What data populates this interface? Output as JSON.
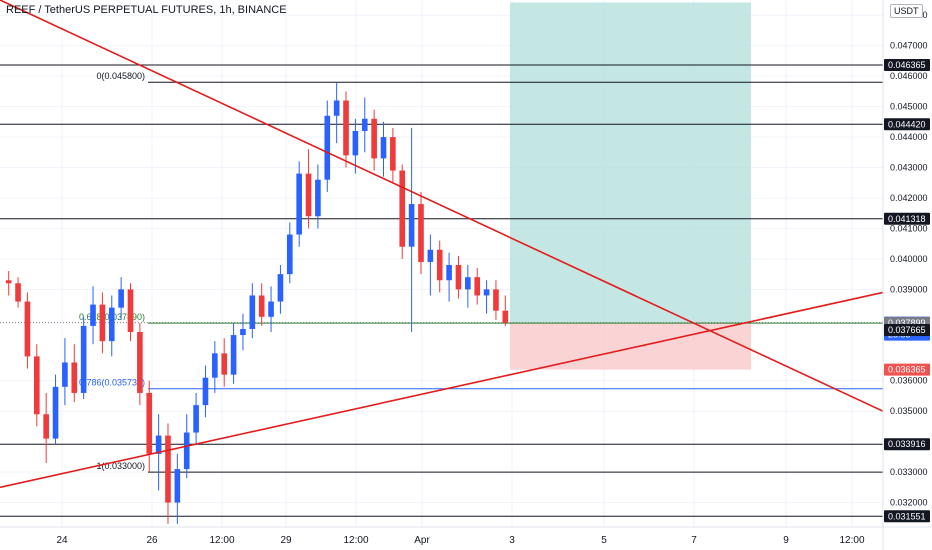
{
  "title": "REEF / TetherUS PERPETUAL FUTURES, 1h, BINANCE",
  "currency_badge": "USDT",
  "colors": {
    "up": "#2962ff",
    "down": "#ef3b3b",
    "trendline": "#e31b1b",
    "profit_zone": "#b2dfdb",
    "loss_zone": "#f8c6c6",
    "fib_green": "#2e7d32",
    "fib_blue": "#2962ff"
  },
  "chart_data": {
    "type": "candlestick",
    "ylim": [
      0.0311,
      0.0485
    ],
    "y_ticks": [
      "0.048000",
      "0.047000",
      "0.046000",
      "0.045000",
      "0.044000",
      "0.043000",
      "0.042000",
      "0.041000",
      "0.040000",
      "0.039000",
      "0.036000",
      "0.035000",
      "0.033000",
      "0.032000"
    ],
    "x_ticks": [
      "24",
      "26",
      "12:00",
      "29",
      "12:00",
      "Apr",
      "3",
      "5",
      "7",
      "9",
      "12:00"
    ],
    "horizontal_levels": [
      0.046365,
      0.04442,
      0.041318,
      0.033916,
      0.031551
    ],
    "price_tags": [
      {
        "label": "0.046365",
        "value": 0.046365,
        "bg": "#131722",
        "fg": "#ffffff"
      },
      {
        "label": "0.044420",
        "value": 0.04442,
        "bg": "#131722",
        "fg": "#ffffff"
      },
      {
        "label": "0.041318",
        "value": 0.041318,
        "bg": "#131722",
        "fg": "#ffffff"
      },
      {
        "label": "0.037909\n28:55",
        "value": 0.037909,
        "bg": "#2962ff",
        "fg": "#ffffff"
      },
      {
        "label": "0.037899",
        "value": 0.037899,
        "bg": "#787b86",
        "fg": "#ffffff"
      },
      {
        "label": "0.037665",
        "value": 0.037665,
        "bg": "#131722",
        "fg": "#ffffff"
      },
      {
        "label": "0.036365",
        "value": 0.036365,
        "bg": "#ef5350",
        "fg": "#ffffff"
      },
      {
        "label": "0.033916",
        "value": 0.033916,
        "bg": "#131722",
        "fg": "#ffffff"
      },
      {
        "label": "0.031551",
        "value": 0.031551,
        "bg": "#131722",
        "fg": "#ffffff"
      }
    ],
    "fib_levels": [
      {
        "label": "0(0.045800)",
        "value": 0.0458,
        "color": "#131722"
      },
      {
        "label": "0.618(0.037890)",
        "value": 0.03789,
        "color": "#2e7d32"
      },
      {
        "label": "0.786(0.035739)",
        "value": 0.035739,
        "color": "#2962ff"
      },
      {
        "label": "1(0.033000)",
        "value": 0.033,
        "color": "#131722"
      }
    ],
    "trendlines": [
      {
        "name": "descending",
        "from": [
          0.0,
          0.0485
        ],
        "to": [
          1.0,
          0.035
        ]
      },
      {
        "name": "ascending",
        "from": [
          0.0,
          0.0325
        ],
        "to": [
          1.0,
          0.0389
        ]
      }
    ],
    "position": {
      "entry": 0.037909,
      "target": 0.04842,
      "stop": 0.036365
    },
    "candles": [
      [
        0.0393,
        0.0396,
        0.0388,
        0.0392
      ],
      [
        0.0392,
        0.0394,
        0.0384,
        0.0386
      ],
      [
        0.0386,
        0.0389,
        0.0364,
        0.0368
      ],
      [
        0.0368,
        0.0372,
        0.0345,
        0.0349
      ],
      [
        0.0349,
        0.0356,
        0.0333,
        0.0341
      ],
      [
        0.0341,
        0.0362,
        0.0339,
        0.0358
      ],
      [
        0.0358,
        0.0374,
        0.0352,
        0.0366
      ],
      [
        0.0366,
        0.0372,
        0.0353,
        0.0356
      ],
      [
        0.0356,
        0.0381,
        0.0354,
        0.0378
      ],
      [
        0.0378,
        0.0391,
        0.0372,
        0.0385
      ],
      [
        0.0385,
        0.0389,
        0.0369,
        0.0373
      ],
      [
        0.0373,
        0.0388,
        0.0368,
        0.0384
      ],
      [
        0.0384,
        0.0394,
        0.038,
        0.039
      ],
      [
        0.039,
        0.0392,
        0.0373,
        0.0376
      ],
      [
        0.0376,
        0.0379,
        0.0352,
        0.0356
      ],
      [
        0.0356,
        0.036,
        0.033,
        0.0336
      ],
      [
        0.0336,
        0.0349,
        0.0324,
        0.0342
      ],
      [
        0.0342,
        0.0346,
        0.0313,
        0.032
      ],
      [
        0.032,
        0.0336,
        0.0313,
        0.0331
      ],
      [
        0.0331,
        0.0349,
        0.0328,
        0.0343
      ],
      [
        0.0343,
        0.0356,
        0.0339,
        0.0352
      ],
      [
        0.0352,
        0.0365,
        0.0348,
        0.0361
      ],
      [
        0.0361,
        0.0373,
        0.0356,
        0.0369
      ],
      [
        0.0369,
        0.0374,
        0.0358,
        0.0362
      ],
      [
        0.0362,
        0.0379,
        0.0359,
        0.0375
      ],
      [
        0.0375,
        0.0382,
        0.037,
        0.0377
      ],
      [
        0.0377,
        0.0392,
        0.0374,
        0.0388
      ],
      [
        0.0388,
        0.0392,
        0.0378,
        0.0381
      ],
      [
        0.0381,
        0.0391,
        0.0376,
        0.0386
      ],
      [
        0.0386,
        0.0398,
        0.0382,
        0.0395
      ],
      [
        0.0395,
        0.0412,
        0.0392,
        0.0408
      ],
      [
        0.0408,
        0.0432,
        0.0404,
        0.0428
      ],
      [
        0.0428,
        0.0436,
        0.041,
        0.0414
      ],
      [
        0.0414,
        0.0431,
        0.041,
        0.0426
      ],
      [
        0.0426,
        0.0452,
        0.0422,
        0.0447
      ],
      [
        0.0447,
        0.0458,
        0.0438,
        0.0452
      ],
      [
        0.0452,
        0.0455,
        0.043,
        0.0434
      ],
      [
        0.0434,
        0.0446,
        0.0428,
        0.0442
      ],
      [
        0.0442,
        0.0453,
        0.0435,
        0.0446
      ],
      [
        0.0446,
        0.0449,
        0.0429,
        0.0433
      ],
      [
        0.0433,
        0.0445,
        0.0427,
        0.044
      ],
      [
        0.044,
        0.0443,
        0.0425,
        0.0429
      ],
      [
        0.0429,
        0.0431,
        0.04,
        0.0404
      ],
      [
        0.0404,
        0.0443,
        0.0376,
        0.0418
      ],
      [
        0.0418,
        0.0422,
        0.0395,
        0.0399
      ],
      [
        0.0399,
        0.0408,
        0.0388,
        0.0403
      ],
      [
        0.0403,
        0.0406,
        0.0389,
        0.0393
      ],
      [
        0.0393,
        0.0402,
        0.0386,
        0.0398
      ],
      [
        0.0398,
        0.0401,
        0.0387,
        0.039
      ],
      [
        0.039,
        0.0398,
        0.0384,
        0.0394
      ],
      [
        0.0394,
        0.0397,
        0.0385,
        0.0388
      ],
      [
        0.0388,
        0.0393,
        0.0382,
        0.039
      ],
      [
        0.039,
        0.0393,
        0.038,
        0.0383
      ],
      [
        0.0383,
        0.0388,
        0.0378,
        0.0379
      ]
    ]
  }
}
